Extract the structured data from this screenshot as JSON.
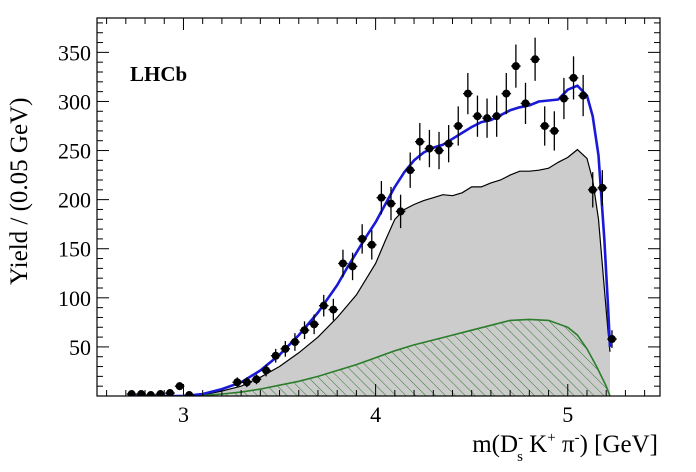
{
  "chart_data": {
    "type": "line",
    "title": "",
    "annotation": "LHCb",
    "xlabel": {
      "m": "m(D",
      "ds_sup": "-",
      "ds_sub": "s",
      "k": " K",
      "k_sup": "+",
      "pi": " π",
      "pi_sup": "-",
      "close": ")",
      "unit": " [GeV]"
    },
    "ylabel": "Yield / (0.05 GeV)",
    "xlim": [
      2.55,
      5.48
    ],
    "ylim": [
      0,
      385
    ],
    "x_ticks": [
      3,
      4,
      5
    ],
    "y_ticks": [
      50,
      100,
      150,
      200,
      250,
      300,
      350
    ],
    "grid": false,
    "colors": {
      "data": "#000000",
      "fit": "#1a1ad6",
      "shaded_fill": "#cccccc",
      "shaded_edge": "#000000",
      "hatched": "#2a7d2a"
    },
    "series": [
      {
        "kind": "points",
        "x": [
          2.73,
          2.78,
          2.83,
          2.88,
          2.93,
          2.98,
          3.03,
          3.28,
          3.33,
          3.38,
          3.43,
          3.48,
          3.53,
          3.58,
          3.63,
          3.68,
          3.73,
          3.78,
          3.83,
          3.88,
          3.93,
          3.98,
          4.03,
          4.08,
          4.13,
          4.18,
          4.23,
          4.28,
          4.33,
          4.38,
          4.43,
          4.48,
          4.53,
          4.58,
          4.63,
          4.68,
          4.73,
          4.78,
          4.83,
          4.88,
          4.93,
          4.98,
          5.03,
          5.08,
          5.13,
          5.18,
          5.23
        ],
        "y": [
          2,
          2,
          1,
          2,
          3,
          10,
          1,
          14,
          14,
          17,
          26,
          41,
          48,
          55,
          67,
          73,
          92,
          88,
          135,
          132,
          160,
          154,
          202,
          196,
          188,
          230,
          259,
          252,
          250,
          257,
          275,
          308,
          285,
          283,
          285,
          308,
          336,
          298,
          343,
          275,
          270,
          303,
          324,
          306,
          210,
          212,
          58
        ],
        "err": [
          2,
          2,
          1,
          2,
          3,
          4,
          1,
          5,
          5,
          5,
          6,
          7,
          8,
          9,
          9,
          10,
          11,
          11,
          14,
          14,
          15,
          15,
          17,
          17,
          17,
          18,
          19,
          19,
          19,
          19,
          20,
          21,
          21,
          20,
          21,
          21,
          22,
          21,
          22,
          20,
          20,
          21,
          22,
          21,
          18,
          18,
          9
        ]
      },
      {
        "kind": "fit",
        "x": [
          2.75,
          3.0,
          3.1,
          3.2,
          3.3,
          3.4,
          3.5,
          3.6,
          3.7,
          3.8,
          3.85,
          3.9,
          3.95,
          4.0,
          4.05,
          4.1,
          4.15,
          4.2,
          4.25,
          4.3,
          4.35,
          4.4,
          4.45,
          4.5,
          4.55,
          4.6,
          4.65,
          4.7,
          4.75,
          4.8,
          4.85,
          4.9,
          4.95,
          5.0,
          5.05,
          5.1,
          5.13,
          5.16,
          5.19,
          5.21,
          5.22
        ],
        "y": [
          0,
          0,
          2,
          7,
          14,
          26,
          42,
          62,
          85,
          113,
          130,
          146,
          162,
          177,
          195,
          213,
          228,
          240,
          248,
          253,
          256,
          262,
          268,
          274,
          279,
          281,
          286,
          291,
          294,
          296,
          300,
          301,
          302,
          312,
          316,
          306,
          285,
          245,
          160,
          90,
          50
        ]
      },
      {
        "kind": "background_total",
        "x": [
          2.75,
          3.0,
          3.1,
          3.2,
          3.3,
          3.4,
          3.5,
          3.6,
          3.7,
          3.8,
          3.9,
          4.0,
          4.05,
          4.1,
          4.15,
          4.2,
          4.25,
          4.3,
          4.35,
          4.4,
          4.45,
          4.5,
          4.55,
          4.6,
          4.65,
          4.7,
          4.75,
          4.8,
          4.85,
          4.9,
          4.95,
          5.0,
          5.05,
          5.1,
          5.13,
          5.16,
          5.19,
          5.21,
          5.22
        ],
        "y": [
          0,
          0,
          1,
          5,
          10,
          19,
          30,
          44,
          60,
          80,
          103,
          135,
          158,
          180,
          190,
          195,
          199,
          202,
          205,
          204,
          207,
          213,
          213,
          217,
          220,
          225,
          229,
          229,
          230,
          232,
          238,
          243,
          251,
          242,
          220,
          180,
          110,
          65,
          45
        ]
      },
      {
        "kind": "component_hatched",
        "x": [
          2.75,
          3.0,
          3.1,
          3.2,
          3.3,
          3.4,
          3.5,
          3.6,
          3.7,
          3.8,
          3.9,
          4.0,
          4.1,
          4.2,
          4.3,
          4.4,
          4.5,
          4.6,
          4.7,
          4.8,
          4.9,
          5.0,
          5.05,
          5.1,
          5.15,
          5.2,
          5.22
        ],
        "y": [
          0,
          0,
          0.5,
          2,
          4,
          7,
          11,
          15,
          20,
          26,
          32,
          39,
          46,
          52,
          57,
          62,
          67,
          72,
          77,
          78,
          77,
          70,
          62,
          48,
          30,
          10,
          0
        ]
      }
    ]
  }
}
